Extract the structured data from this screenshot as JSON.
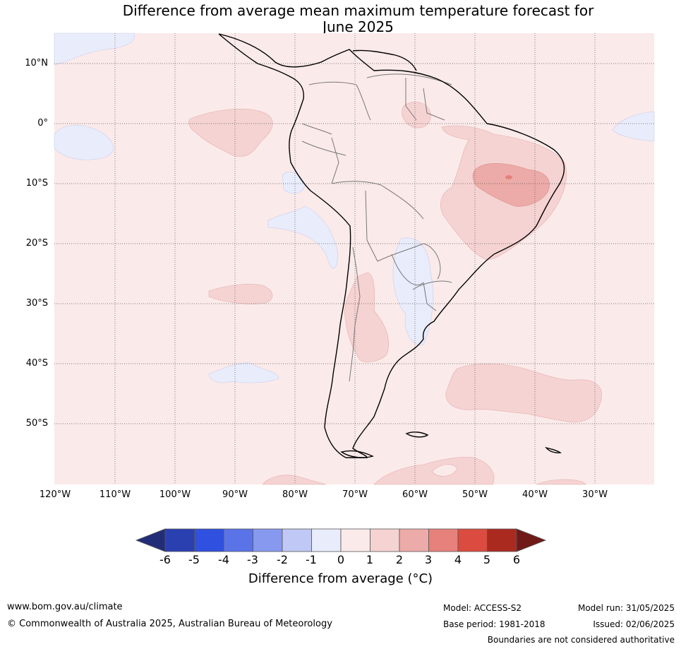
{
  "title": {
    "line1": "Difference from average mean maximum temperature forecast for",
    "line2": "June 2025"
  },
  "map": {
    "lat_labels": [
      "10°N",
      "0°",
      "10°S",
      "20°S",
      "30°S",
      "40°S",
      "50°S"
    ],
    "lon_labels": [
      "120°W",
      "110°W",
      "100°W",
      "90°W",
      "80°W",
      "70°W",
      "60°W",
      "50°W",
      "40°W",
      "30°W"
    ]
  },
  "colorbar": {
    "ticks": [
      "-6",
      "-5",
      "-4",
      "-3",
      "-2",
      "-1",
      "0",
      "1",
      "2",
      "3",
      "4",
      "5",
      "6"
    ],
    "colors": [
      "#222d78",
      "#2a40b1",
      "#3050e0",
      "#5a73e6",
      "#8799ee",
      "#c0c8f5",
      "#e9ecfb",
      "#fbeaea",
      "#f5d3d2",
      "#ecaba8",
      "#e6817b",
      "#db4b40",
      "#ab2a20",
      "#701a18"
    ],
    "label": "Difference from average (°C)"
  },
  "footer": {
    "website": "www.bom.gov.au/climate",
    "copyright": "© Commonwealth of Australia 2025, Australian Bureau of Meteorology",
    "model": "Model: ACCESS-S2",
    "base_period": "Base period: 1981-2018",
    "model_run": "Model run: 31/05/2025",
    "issued": "Issued: 02/06/2025",
    "disclaimer": "Boundaries are not considered authoritative"
  }
}
